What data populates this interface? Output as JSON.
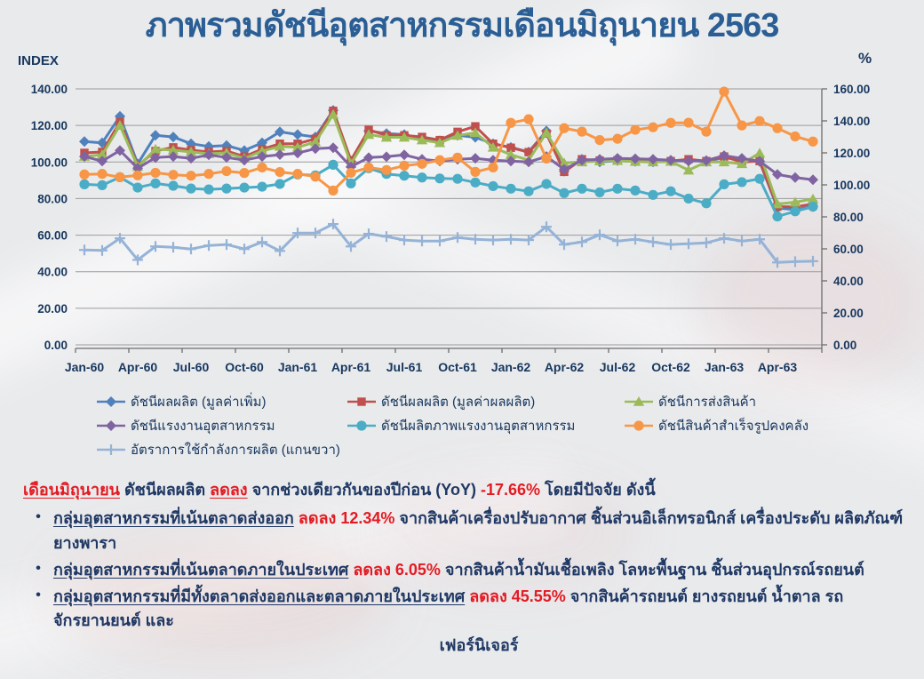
{
  "page": {
    "title": "ภาพรวมดัชนีอุตสาหกรรมเดือนมิถุนายน  2563"
  },
  "colors": {
    "title_text": "#2a5e94",
    "body_text": "#1f3864",
    "axis_text": "#17375e",
    "highlight_red": "#e31b23",
    "gridline": "#9b9b9b",
    "background": "#e9eaec"
  },
  "chart_data": {
    "type": "line",
    "title": "ภาพรวมดัชนีอุตสาหกรรมเดือนมิถุนายน 2563",
    "left_axis_title": "INDEX",
    "right_axis_title": "%",
    "left_ylim": [
      0,
      140
    ],
    "right_ylim": [
      0,
      160
    ],
    "grid": true,
    "legend_position": "bottom",
    "left_tick_labels": [
      "0.00",
      "20.00",
      "40.00",
      "60.00",
      "80.00",
      "100.00",
      "120.00",
      "140.00"
    ],
    "right_tick_labels": [
      "0.00",
      "20.00",
      "40.00",
      "60.00",
      "80.00",
      "100.00",
      "120.00",
      "140.00",
      "160.00"
    ],
    "x_tick_labels": [
      "Jan-60",
      "Apr-60",
      "Jul-60",
      "Oct-60",
      "Jan-61",
      "Apr-61",
      "Jul-61",
      "Oct-61",
      "Jan-62",
      "Apr-62",
      "Jul-62",
      "Oct-62",
      "Jan-63",
      "Apr-63"
    ],
    "months": [
      "Jan-60",
      "Feb-60",
      "Mar-60",
      "Apr-60",
      "May-60",
      "Jun-60",
      "Jul-60",
      "Aug-60",
      "Sep-60",
      "Oct-60",
      "Nov-60",
      "Dec-60",
      "Jan-61",
      "Feb-61",
      "Mar-61",
      "Apr-61",
      "May-61",
      "Jun-61",
      "Jul-61",
      "Aug-61",
      "Sep-61",
      "Oct-61",
      "Nov-61",
      "Dec-61",
      "Jan-62",
      "Feb-62",
      "Mar-62",
      "Apr-62",
      "May-62",
      "Jun-62",
      "Jul-62",
      "Aug-62",
      "Sep-62",
      "Oct-62",
      "Nov-62",
      "Dec-62",
      "Jan-63",
      "Feb-63",
      "Mar-63",
      "Apr-63",
      "May-63",
      "Jun-63"
    ],
    "series": [
      {
        "name": "ดัชนีผลผลิต (มูลค่าเพิ่ม)",
        "color": "#4F81BD",
        "marker": "diamond",
        "axis": "left",
        "values": [
          111.2,
          110.5,
          125.0,
          99.0,
          114.6,
          113.7,
          110.0,
          108.5,
          109.0,
          106.3,
          110.5,
          116.5,
          115.0,
          113.7,
          128.3,
          100.4,
          117.0,
          115.6,
          115.0,
          112.6,
          111.6,
          114.6,
          113.5,
          110.0,
          108.0,
          105.5,
          117.0,
          95.0,
          101.5,
          100.0,
          100.8,
          100.3,
          100.0,
          100.5,
          101.0,
          100.2,
          102.5,
          100.8,
          100.3,
          74.8,
          74.0,
          75.6
        ]
      },
      {
        "name": "ดัชนีผลผลิต (มูลค่าผลผลิต)",
        "color": "#C0504D",
        "marker": "square",
        "axis": "left",
        "values": [
          105.0,
          105.5,
          122.0,
          98.0,
          106.0,
          108.0,
          106.5,
          105.5,
          106.0,
          103.0,
          107.0,
          110.0,
          110.0,
          112.7,
          128.0,
          101.0,
          117.6,
          114.6,
          114.6,
          113.7,
          112.0,
          116.5,
          119.5,
          110.0,
          107.8,
          105.4,
          115.6,
          94.6,
          101.5,
          100.8,
          101.0,
          100.5,
          100.2,
          100.5,
          101.5,
          100.5,
          103.0,
          100.0,
          100.5,
          75.6,
          75.5,
          77.0
        ]
      },
      {
        "name": "ดัชนีการส่งสินค้า",
        "color": "#9BBB59",
        "marker": "triangle",
        "axis": "left",
        "values": [
          103.0,
          104.0,
          120.0,
          97.5,
          107.0,
          106.5,
          105.5,
          104.5,
          105.0,
          102.0,
          106.0,
          108.5,
          108.0,
          111.0,
          126.0,
          99.0,
          115.0,
          113.5,
          113.5,
          112.0,
          110.5,
          114.5,
          116.0,
          108.0,
          104.0,
          101.0,
          116.0,
          99.5,
          100.0,
          100.5,
          100.8,
          100.2,
          100.0,
          100.3,
          95.5,
          100.0,
          100.0,
          99.0,
          104.9,
          77.0,
          78.0,
          79.8
        ]
      },
      {
        "name": "ดัชนีแรงงานอุตสาหกรรม",
        "color": "#8064A2",
        "marker": "diamond",
        "axis": "left",
        "values": [
          103.0,
          100.5,
          106.3,
          96.6,
          102.4,
          103.0,
          102.0,
          103.9,
          102.5,
          101.0,
          103.0,
          104.0,
          104.9,
          107.3,
          107.8,
          97.4,
          102.4,
          102.9,
          103.9,
          101.5,
          100.5,
          101.5,
          102.0,
          101.0,
          100.5,
          100.0,
          103.0,
          96.0,
          101.0,
          101.5,
          102.0,
          101.8,
          101.5,
          101.0,
          100.5,
          100.8,
          103.5,
          102.0,
          100.5,
          93.2,
          91.5,
          90.3
        ]
      },
      {
        "name": "ดัชนีผลิตภาพแรงงานอุตสาหกรรม",
        "color": "#4BACC6",
        "marker": "circle",
        "axis": "left",
        "values": [
          87.8,
          87.3,
          91.7,
          86.0,
          88.3,
          87.0,
          85.5,
          85.0,
          85.5,
          86.0,
          86.5,
          88.0,
          93.2,
          92.7,
          98.5,
          88.3,
          96.6,
          93.5,
          92.5,
          91.5,
          91.0,
          90.8,
          88.8,
          86.8,
          85.4,
          84.0,
          88.0,
          83.0,
          85.4,
          83.4,
          85.4,
          84.4,
          82.0,
          84.0,
          80.0,
          77.4,
          87.8,
          89.0,
          90.8,
          70.2,
          73.0,
          75.6
        ]
      },
      {
        "name": "ดัชนีสินค้าสำเร็จรูปคงคลัง",
        "color": "#F79646",
        "marker": "circle",
        "axis": "left",
        "values": [
          93.2,
          93.5,
          91.7,
          92.7,
          94.1,
          93.0,
          92.5,
          93.5,
          95.0,
          94.0,
          97.0,
          94.5,
          93.5,
          92.0,
          84.4,
          94.1,
          97.0,
          95.6,
          98.0,
          99.0,
          101.0,
          102.4,
          94.6,
          97.0,
          121.4,
          123.4,
          101.9,
          118.5,
          116.6,
          112.0,
          112.7,
          117.6,
          119.0,
          121.4,
          121.5,
          116.6,
          138.5,
          120.0,
          122.4,
          118.5,
          114.0,
          111.2
        ]
      },
      {
        "name": "อัตราการใช้กำลังการผลิต (แกนขวา)",
        "color": "#95B3D7",
        "marker": "plus",
        "axis": "right",
        "values": [
          59.3,
          59.0,
          66.6,
          53.1,
          61.5,
          61.0,
          59.9,
          62.1,
          62.7,
          59.9,
          64.3,
          58.7,
          69.9,
          69.9,
          75.5,
          61.5,
          69.4,
          67.7,
          65.5,
          64.9,
          64.9,
          67.1,
          66.0,
          65.5,
          66.0,
          65.5,
          73.8,
          62.7,
          64.3,
          68.8,
          64.9,
          66.0,
          64.3,
          62.7,
          63.2,
          63.8,
          66.6,
          64.9,
          66.0,
          51.5,
          52.0,
          52.3
        ]
      }
    ]
  },
  "analysis": {
    "intro": {
      "lead": "เดือนมิถุนายน",
      "mid1": " ดัชนีผลผลิต ",
      "down": "ลดลง",
      "mid2": " จากช่วงเดียวกันของปีก่อน (YoY) ",
      "value": "-17.66%",
      "tail": " โดยมีปัจจัย ดังนี้"
    },
    "bullet_char": "•",
    "bullets": [
      {
        "group": "กลุ่มอุตสาหกรรมที่เน้นตลาดส่งออก",
        "change": " ลดลง 12.34%",
        "detail": " จากสินค้าเครื่องปรับอากาศ ชิ้นส่วนอิเล็กทรอนิกส์ เครื่องประดับ ผลิตภัณฑ์ยางพารา",
        "detail2": ""
      },
      {
        "group": "กลุ่มอุตสาหกรรมที่เน้นตลาดภายในประเทศ",
        "change": " ลดลง 6.05%",
        "detail": " จากสินค้าน้ำมันเชื้อเพลิง โลหะพื้นฐาน ชิ้นส่วนอุปกรณ์รถยนต์",
        "detail2": ""
      },
      {
        "group": "กลุ่มอุตสาหกรรมที่มีทั้งตลาดส่งออกและตลาดภายในประเทศ",
        "change": " ลดลง 45.55%",
        "detail": " จากสินค้ารถยนต์ ยางรถยนต์ น้ำตาล รถจักรยานยนต์ และ",
        "detail2": "เฟอร์นิเจอร์"
      }
    ]
  }
}
